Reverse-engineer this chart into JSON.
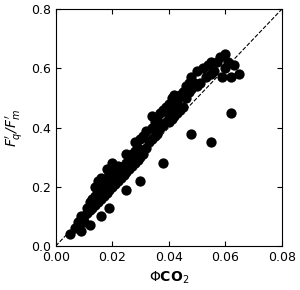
{
  "x_data": [
    0.005,
    0.007,
    0.008,
    0.009,
    0.009,
    0.01,
    0.01,
    0.011,
    0.011,
    0.012,
    0.012,
    0.013,
    0.013,
    0.013,
    0.014,
    0.014,
    0.014,
    0.015,
    0.015,
    0.015,
    0.015,
    0.016,
    0.016,
    0.016,
    0.016,
    0.017,
    0.017,
    0.017,
    0.018,
    0.018,
    0.018,
    0.018,
    0.019,
    0.019,
    0.019,
    0.02,
    0.02,
    0.02,
    0.02,
    0.021,
    0.021,
    0.022,
    0.022,
    0.022,
    0.023,
    0.023,
    0.024,
    0.024,
    0.025,
    0.025,
    0.025,
    0.026,
    0.026,
    0.027,
    0.027,
    0.028,
    0.028,
    0.028,
    0.029,
    0.029,
    0.03,
    0.03,
    0.031,
    0.031,
    0.032,
    0.032,
    0.033,
    0.034,
    0.034,
    0.034,
    0.035,
    0.035,
    0.036,
    0.036,
    0.037,
    0.037,
    0.038,
    0.038,
    0.039,
    0.039,
    0.04,
    0.04,
    0.04,
    0.041,
    0.041,
    0.041,
    0.042,
    0.042,
    0.042,
    0.043,
    0.043,
    0.044,
    0.044,
    0.045,
    0.045,
    0.046,
    0.046,
    0.047,
    0.047,
    0.048,
    0.048,
    0.049,
    0.05,
    0.05,
    0.051,
    0.052,
    0.053,
    0.054,
    0.055,
    0.055,
    0.056,
    0.057,
    0.058,
    0.059,
    0.06,
    0.06,
    0.061,
    0.062,
    0.063,
    0.065,
    0.062,
    0.055,
    0.048,
    0.038,
    0.03,
    0.025,
    0.019,
    0.016,
    0.012,
    0.009
  ],
  "y_data": [
    0.04,
    0.06,
    0.08,
    0.09,
    0.1,
    0.1,
    0.08,
    0.11,
    0.13,
    0.12,
    0.15,
    0.13,
    0.15,
    0.16,
    0.14,
    0.17,
    0.2,
    0.15,
    0.17,
    0.2,
    0.22,
    0.16,
    0.18,
    0.2,
    0.23,
    0.17,
    0.2,
    0.22,
    0.18,
    0.21,
    0.23,
    0.26,
    0.19,
    0.22,
    0.25,
    0.2,
    0.23,
    0.25,
    0.28,
    0.21,
    0.24,
    0.22,
    0.25,
    0.27,
    0.23,
    0.26,
    0.24,
    0.27,
    0.25,
    0.28,
    0.31,
    0.26,
    0.29,
    0.27,
    0.31,
    0.28,
    0.32,
    0.35,
    0.29,
    0.33,
    0.3,
    0.36,
    0.31,
    0.37,
    0.33,
    0.39,
    0.35,
    0.36,
    0.4,
    0.44,
    0.37,
    0.42,
    0.38,
    0.43,
    0.4,
    0.45,
    0.41,
    0.46,
    0.42,
    0.47,
    0.42,
    0.44,
    0.48,
    0.43,
    0.46,
    0.5,
    0.44,
    0.47,
    0.51,
    0.45,
    0.49,
    0.46,
    0.51,
    0.47,
    0.52,
    0.5,
    0.54,
    0.52,
    0.55,
    0.53,
    0.57,
    0.55,
    0.54,
    0.59,
    0.55,
    0.6,
    0.57,
    0.61,
    0.58,
    0.62,
    0.59,
    0.62,
    0.64,
    0.57,
    0.65,
    0.6,
    0.62,
    0.57,
    0.61,
    0.58,
    0.45,
    0.35,
    0.38,
    0.28,
    0.22,
    0.19,
    0.13,
    0.1,
    0.07,
    0.05
  ],
  "line_x": [
    0.0,
    0.08
  ],
  "line_y": [
    0.0,
    0.8
  ],
  "xlabel": "$\\Phi$CO$_2$",
  "ylabel": "$F_q'$/$F_m'$",
  "xlim": [
    0.0,
    0.08
  ],
  "ylim": [
    0.0,
    0.8
  ],
  "xticks": [
    0.0,
    0.02,
    0.04,
    0.06,
    0.08
  ],
  "yticks": [
    0.0,
    0.2,
    0.4,
    0.6,
    0.8
  ],
  "dot_color": "#000000",
  "dot_size": 55,
  "line_color": "#000000",
  "line_style": "--",
  "line_width": 1.0,
  "bg_color": "#ffffff"
}
